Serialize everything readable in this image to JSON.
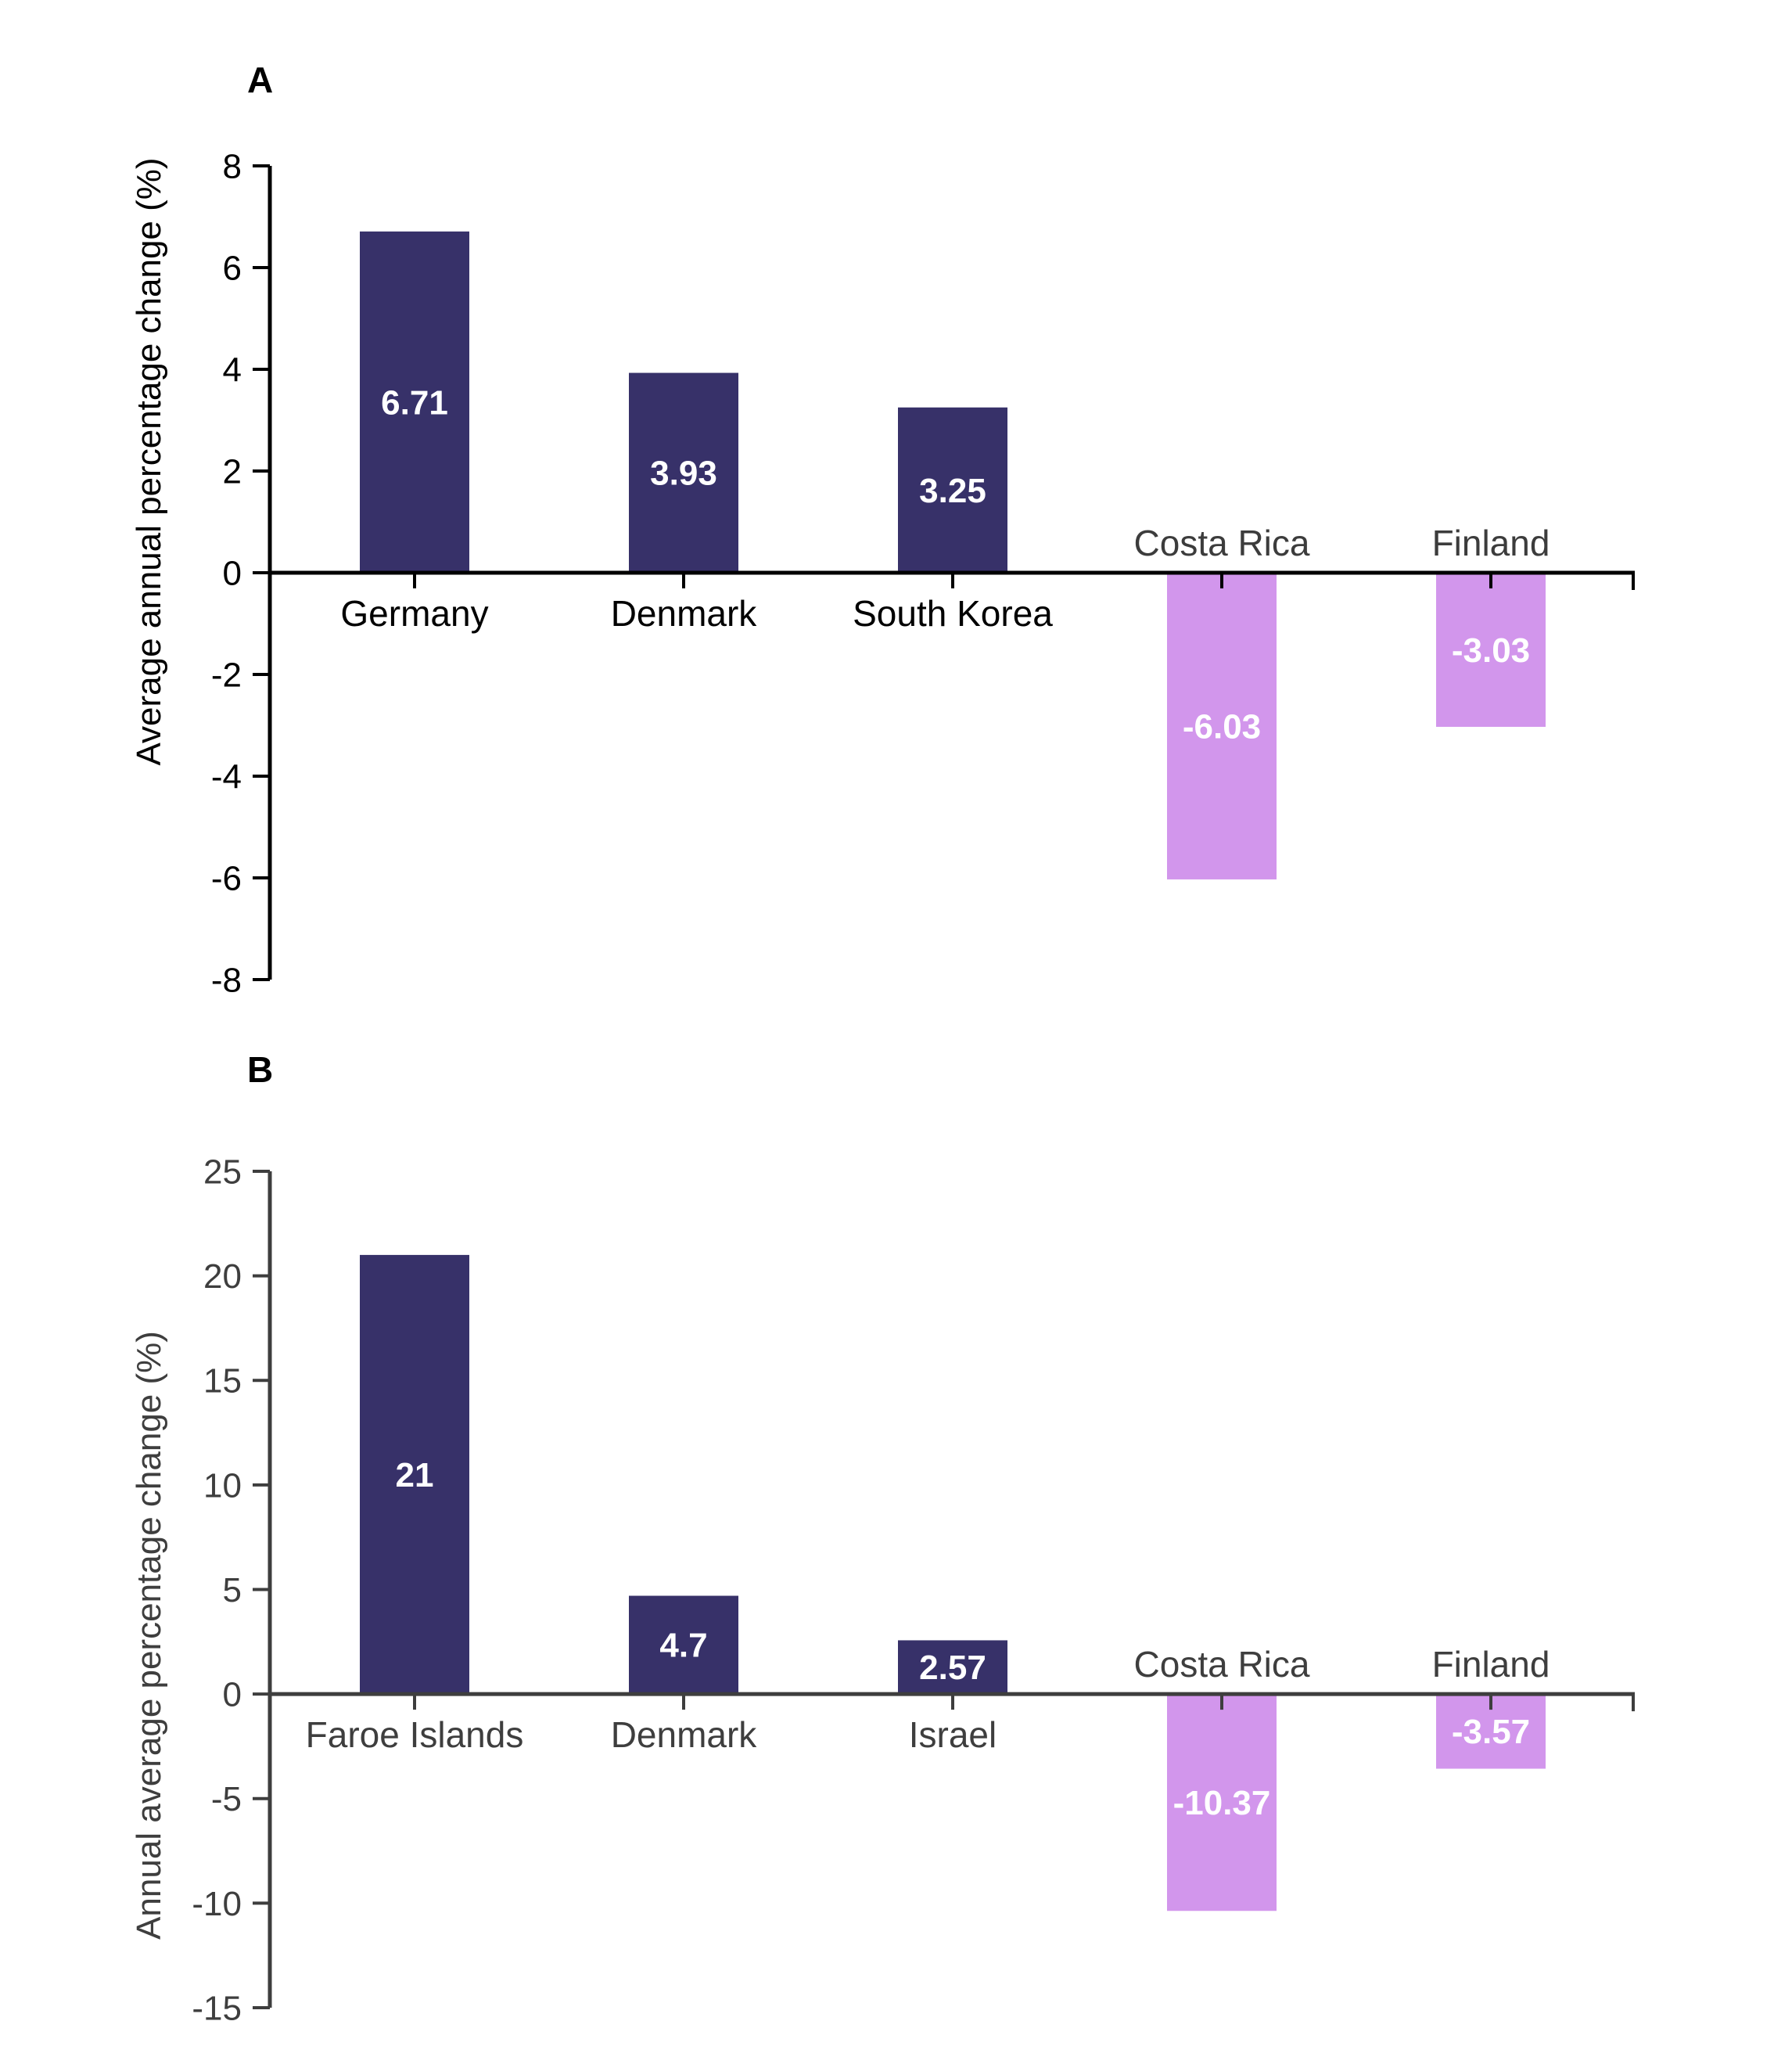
{
  "figure": {
    "background": "#FFFFFF"
  },
  "chart_data": [
    {
      "type": "bar",
      "panel_letter": "A",
      "title": "",
      "ylabel": "Average annual percentage change (%)",
      "xlabel": "",
      "categories": [
        "Germany",
        "Denmark",
        "South Korea",
        "Costa Rica",
        "Finland"
      ],
      "values": [
        6.71,
        3.93,
        3.25,
        -6.03,
        -3.03
      ],
      "value_labels": [
        "6.71",
        "3.93",
        "3.25",
        "-6.03",
        "-3.03"
      ],
      "ylim": [
        -8,
        8
      ],
      "ytick_step": 2,
      "yticks": [
        "8",
        "6",
        "4",
        "2",
        "0",
        "-2",
        "-4",
        "-6",
        "-8"
      ],
      "grid": "off",
      "legend": "none",
      "colors": {
        "bar_positive": "#373169",
        "bar_negative": "#D296EC",
        "axis": "#000000",
        "tick_labels": "#000000",
        "category_label_positive": "#000000",
        "category_label_negative": "#3C3C3C",
        "y_axis_title": "#000000",
        "panel_letter": "#000000",
        "value_label": "#FFFFFF"
      }
    },
    {
      "type": "bar",
      "panel_letter": "B",
      "title": "",
      "ylabel": "Annual average percentage change (%)",
      "xlabel": "",
      "categories": [
        "Faroe Islands",
        "Denmark",
        "Israel",
        "Costa Rica",
        "Finland"
      ],
      "values": [
        21,
        4.7,
        2.57,
        -10.37,
        -3.57
      ],
      "value_labels": [
        "21",
        "4.7",
        "2.57",
        "-10.37",
        "-3.57"
      ],
      "ylim": [
        -15,
        25
      ],
      "ytick_step": 5,
      "yticks": [
        "25",
        "20",
        "15",
        "10",
        "5",
        "0",
        "-5",
        "-10",
        "-15"
      ],
      "grid": "off",
      "legend": "none",
      "colors": {
        "bar_positive": "#373169",
        "bar_negative": "#D296EC",
        "axis": "#3E3E3E",
        "tick_labels": "#3E3E3E",
        "category_label_positive": "#3E3E3E",
        "category_label_negative": "#3E3E3E",
        "y_axis_title": "#3E3E3E",
        "panel_letter": "#000000",
        "value_label": "#FFFFFF"
      }
    }
  ]
}
